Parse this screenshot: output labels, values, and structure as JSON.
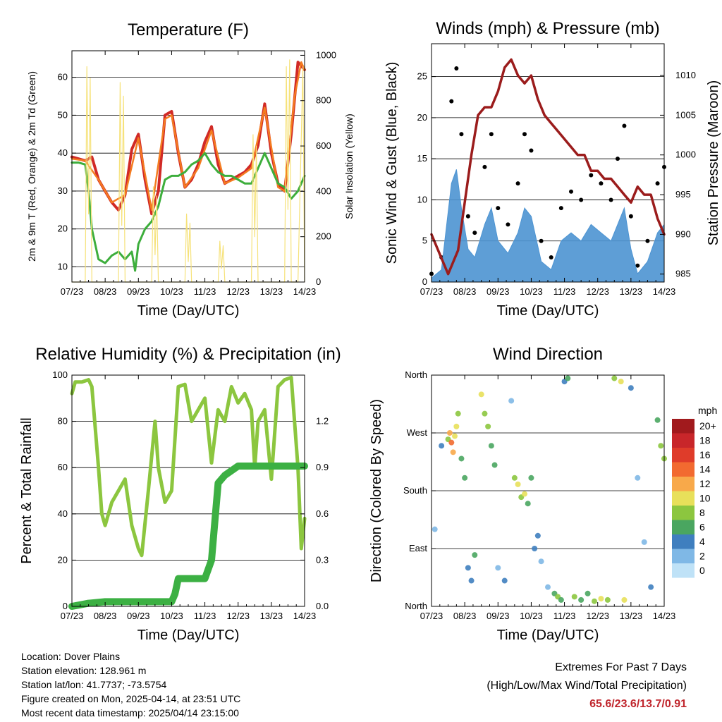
{
  "xticks": [
    "07/23",
    "08/23",
    "09/23",
    "10/23",
    "11/23",
    "12/23",
    "13/23",
    "14/23"
  ],
  "footer": {
    "location": "Location: Dover Plains",
    "elevation": "Station elevation: 128.961 m",
    "latlon": "Station lat/lon: 41.7737; -73.5754",
    "created": "Figure created on Mon, 2025-04-14, at 23:51 UTC",
    "recent": "Most recent data timestamp: 2025/04/14 23:15:00"
  },
  "extremes": {
    "title": "Extremes For Past 7 Days",
    "subtitle": "(High/Low/Max Wind/Total Precipitation)",
    "values": "65.6/23.6/13.7/0.91"
  },
  "colors": {
    "temp2m": "#d12a26",
    "temp9m": "#f47c20",
    "dew": "#3dae3c",
    "solar": "#f6e27a",
    "gust": "#000000",
    "wind": "#4d94d2",
    "pressure": "#9b1c1c",
    "rh": "#8cc63f",
    "precip": "#3cb043"
  },
  "chart_data": [
    {
      "type": "line",
      "title": "Temperature (F)",
      "xlabel": "Time (Day/UTC)",
      "ylabel": "2m & 9m T (Red, Orange) & 2m Td (Green)",
      "ylabel_right": "Solar Insolation (Yellow)",
      "x_range": [
        0,
        7
      ],
      "ylim": [
        6,
        67
      ],
      "yticks": [
        10,
        20,
        30,
        40,
        50,
        60
      ],
      "ylim_right": [
        0,
        1020
      ],
      "yticks_right": [
        0,
        200,
        400,
        600,
        800,
        1000
      ],
      "grid": true,
      "series": [
        {
          "name": "2m T",
          "x": [
            0,
            0.2,
            0.4,
            0.6,
            0.8,
            1.0,
            1.2,
            1.4,
            1.6,
            1.8,
            2.0,
            2.2,
            2.4,
            2.6,
            2.8,
            3.0,
            3.2,
            3.4,
            3.6,
            3.8,
            4.0,
            4.2,
            4.4,
            4.6,
            4.8,
            5.0,
            5.2,
            5.4,
            5.6,
            5.8,
            6.0,
            6.2,
            6.4,
            6.6,
            6.8,
            7.0
          ],
          "values": [
            39,
            38.5,
            38,
            39,
            33,
            30,
            27,
            25,
            29,
            41,
            45,
            33,
            24,
            30,
            50,
            51,
            40,
            31,
            33,
            37,
            43,
            47,
            37,
            32,
            33,
            34,
            35,
            37,
            42,
            53,
            40,
            32,
            30,
            45,
            64,
            62
          ]
        },
        {
          "name": "9m T",
          "x": [
            0,
            0.4,
            0.8,
            1.2,
            1.6,
            2.0,
            2.4,
            2.8,
            3.0,
            3.4,
            3.8,
            4.2,
            4.6,
            5.0,
            5.4,
            5.8,
            6.2,
            6.4,
            6.7,
            6.9,
            7.0
          ],
          "values": [
            38.5,
            38,
            33,
            27,
            29,
            44,
            25,
            49,
            50,
            31,
            36,
            46,
            32,
            33.5,
            36,
            52,
            31,
            30,
            55,
            64,
            62
          ]
        },
        {
          "name": "2m Td",
          "x": [
            0,
            0.2,
            0.4,
            0.5,
            0.6,
            0.8,
            1.0,
            1.2,
            1.4,
            1.6,
            1.8,
            1.9,
            2.0,
            2.2,
            2.4,
            2.6,
            2.8,
            3.0,
            3.2,
            3.4,
            3.6,
            3.8,
            4.0,
            4.2,
            4.4,
            4.6,
            4.8,
            5.0,
            5.2,
            5.4,
            5.6,
            5.8,
            6.0,
            6.2,
            6.4,
            6.6,
            6.8,
            7.0
          ],
          "values": [
            37.5,
            37.5,
            37,
            30,
            20,
            12,
            11,
            13,
            14,
            12,
            14,
            9,
            16,
            20,
            22,
            26,
            33,
            34,
            34,
            35,
            37,
            38,
            40,
            37,
            35,
            34,
            34,
            33,
            32,
            32,
            36,
            40,
            36,
            32,
            31,
            28,
            30,
            34
          ]
        },
        {
          "name": "Solar Insolation",
          "axis": "right",
          "x": [
            0,
            0.4,
            0.45,
            0.5,
            0.55,
            0.6,
            1.4,
            1.45,
            1.5,
            1.55,
            1.6,
            2.4,
            2.45,
            2.5,
            2.55,
            2.6,
            3.4,
            3.45,
            3.5,
            3.55,
            3.6,
            4.4,
            4.45,
            4.5,
            4.55,
            4.6,
            5.4,
            5.45,
            5.5,
            5.55,
            5.6,
            6.4,
            6.45,
            6.5,
            6.55,
            6.6,
            6.8,
            6.95,
            7.0
          ],
          "values": [
            0,
            0,
            950,
            300,
            900,
            0,
            0,
            880,
            250,
            820,
            0,
            0,
            420,
            120,
            380,
            0,
            0,
            300,
            90,
            260,
            0,
            0,
            180,
            60,
            160,
            0,
            0,
            650,
            200,
            600,
            0,
            0,
            950,
            320,
            980,
            0,
            0,
            950,
            0
          ]
        }
      ]
    },
    {
      "type": "line",
      "title": "Winds (mph) & Pressure (mb)",
      "xlabel": "Time (Day/UTC)",
      "ylabel": "Sonic Wind & Gust (Blue, Black)",
      "ylabel_right": "Station Pressure (Maroon)",
      "x_range": [
        0,
        7
      ],
      "ylim": [
        0,
        29
      ],
      "yticks": [
        0,
        5,
        10,
        15,
        20,
        25
      ],
      "ylim_right": [
        984,
        1014
      ],
      "yticks_right": [
        985,
        990,
        995,
        1000,
        1005,
        1010
      ],
      "grid": true,
      "series": [
        {
          "name": "Gust",
          "x": [
            0,
            0.3,
            0.6,
            0.75,
            0.9,
            1.1,
            1.3,
            1.6,
            1.8,
            2.0,
            2.3,
            2.6,
            2.8,
            3.0,
            3.3,
            3.6,
            3.9,
            4.2,
            4.5,
            4.8,
            5.1,
            5.4,
            5.6,
            5.8,
            6.0,
            6.2,
            6.5,
            6.8,
            7.0
          ],
          "values": [
            1,
            3,
            22,
            26,
            18,
            8,
            6,
            14,
            18,
            9,
            7,
            12,
            18,
            16,
            5,
            3,
            9,
            11,
            10,
            13,
            12,
            10,
            15,
            19,
            8,
            2,
            5,
            12,
            14
          ]
        },
        {
          "name": "Wind",
          "x": [
            0,
            0.3,
            0.6,
            0.75,
            0.9,
            1.1,
            1.3,
            1.6,
            1.8,
            2.0,
            2.3,
            2.6,
            2.8,
            3.0,
            3.3,
            3.6,
            3.9,
            4.2,
            4.5,
            4.8,
            5.1,
            5.4,
            5.6,
            5.8,
            6.0,
            6.2,
            6.5,
            6.8,
            7.0
          ],
          "values": [
            0.5,
            1.5,
            12,
            13.7,
            9,
            4,
            3,
            7,
            9,
            5,
            3.5,
            6,
            9,
            8,
            2.5,
            1.5,
            5,
            6,
            5,
            7,
            6,
            5,
            7,
            9,
            4,
            1,
            2.5,
            6,
            7
          ]
        },
        {
          "name": "Pressure",
          "axis": "right",
          "x": [
            0,
            0.3,
            0.5,
            0.8,
            1.0,
            1.2,
            1.4,
            1.6,
            1.8,
            2.0,
            2.2,
            2.4,
            2.6,
            2.8,
            3.0,
            3.2,
            3.4,
            3.6,
            3.8,
            4.0,
            4.2,
            4.4,
            4.6,
            4.8,
            5.0,
            5.2,
            5.4,
            5.6,
            5.8,
            6.0,
            6.2,
            6.4,
            6.6,
            6.8,
            7.0
          ],
          "values": [
            990,
            987,
            985,
            988,
            994,
            1000,
            1005,
            1006,
            1006,
            1008,
            1011,
            1012,
            1010,
            1009,
            1010,
            1007,
            1005,
            1004,
            1003,
            1002,
            1001,
            1000,
            1000,
            998,
            998,
            997,
            997,
            996,
            995,
            994,
            996,
            995,
            995,
            992,
            990
          ]
        }
      ]
    },
    {
      "type": "line",
      "title": "Relative Humidity (%) & Precipitation (in)",
      "xlabel": "Time (Day/UTC)",
      "ylabel": "Percent & Total Rainfall",
      "x_range": [
        0,
        7
      ],
      "ylim": [
        0,
        100
      ],
      "yticks": [
        0,
        20,
        40,
        60,
        80,
        100
      ],
      "ylim_right": [
        0,
        1.5
      ],
      "yticks_right": [
        0.0,
        0.3,
        0.6,
        0.9,
        1.2
      ],
      "yticks_right_labels": [
        "0.0",
        "0.3",
        "0.6",
        "0.9",
        "1.2"
      ],
      "grid": true,
      "series": [
        {
          "name": "Relative Humidity",
          "x": [
            0,
            0.1,
            0.3,
            0.5,
            0.6,
            0.8,
            0.9,
            1.0,
            1.2,
            1.4,
            1.6,
            1.8,
            2.0,
            2.1,
            2.3,
            2.5,
            2.6,
            2.8,
            3.0,
            3.2,
            3.4,
            3.6,
            3.8,
            4.0,
            4.2,
            4.4,
            4.6,
            4.8,
            5.0,
            5.2,
            5.4,
            5.5,
            5.6,
            5.8,
            6.0,
            6.2,
            6.4,
            6.6,
            6.8,
            6.9,
            7.0
          ],
          "values": [
            92,
            97,
            97,
            98,
            95,
            60,
            40,
            35,
            45,
            50,
            55,
            35,
            25,
            22,
            50,
            80,
            60,
            45,
            50,
            95,
            96,
            80,
            85,
            90,
            62,
            85,
            80,
            95,
            88,
            92,
            85,
            60,
            80,
            85,
            55,
            95,
            98,
            99,
            60,
            25,
            38
          ]
        },
        {
          "name": "Total Precipitation",
          "axis": "right",
          "x": [
            0,
            0.5,
            1.0,
            2.0,
            3.0,
            3.1,
            3.2,
            3.4,
            4.0,
            4.2,
            4.3,
            4.4,
            4.6,
            5.0,
            6.0,
            7.0
          ],
          "values": [
            0,
            0.02,
            0.03,
            0.03,
            0.03,
            0.08,
            0.18,
            0.18,
            0.18,
            0.3,
            0.55,
            0.8,
            0.85,
            0.91,
            0.91,
            0.91
          ]
        }
      ]
    },
    {
      "type": "scatter",
      "title": "Wind Direction",
      "xlabel": "Time (Day/UTC)",
      "ylabel": "Direction (Colored By Speed)",
      "x_range": [
        0,
        7
      ],
      "ylim": [
        0,
        360
      ],
      "yticks": [
        0,
        90,
        180,
        270,
        360
      ],
      "ytick_labels": [
        "North",
        "East",
        "South",
        "West",
        "North"
      ],
      "colorbar": {
        "label": "mph",
        "levels": [
          "20+",
          "18",
          "16",
          "14",
          "12",
          "10",
          "8",
          "6",
          "4",
          "2",
          "0"
        ],
        "colors": [
          "#a11a1d",
          "#c8262a",
          "#df3c2a",
          "#f26a30",
          "#f8a94a",
          "#e8e05a",
          "#8cc63f",
          "#4aa660",
          "#3f7fbf",
          "#7fb8e6",
          "#bfe2f7"
        ]
      },
      "series": [
        {
          "name": "direction",
          "x": [
            0.1,
            0.3,
            0.5,
            0.55,
            0.6,
            0.65,
            0.7,
            0.75,
            0.8,
            0.9,
            1.0,
            1.1,
            1.2,
            1.3,
            1.5,
            1.6,
            1.7,
            1.8,
            1.9,
            2.0,
            2.2,
            2.4,
            2.5,
            2.6,
            2.7,
            2.8,
            2.9,
            3.0,
            3.1,
            3.2,
            3.3,
            3.5,
            3.7,
            3.8,
            3.9,
            4.0,
            4.1,
            4.3,
            4.5,
            4.7,
            4.9,
            5.1,
            5.3,
            5.5,
            5.7,
            5.8,
            6.0,
            6.2,
            6.4,
            6.6,
            6.8,
            6.9,
            7.0
          ],
          "values": [
            120,
            250,
            260,
            270,
            255,
            240,
            265,
            280,
            300,
            230,
            200,
            60,
            40,
            80,
            330,
            300,
            280,
            250,
            220,
            60,
            40,
            320,
            200,
            190,
            170,
            175,
            160,
            200,
            90,
            110,
            70,
            30,
            20,
            15,
            10,
            350,
            355,
            15,
            10,
            20,
            8,
            12,
            10,
            355,
            350,
            10,
            340,
            200,
            100,
            30,
            290,
            250,
            230
          ],
          "speeds": [
            2,
            4,
            8,
            12,
            13,
            11,
            10,
            9,
            7,
            6,
            5,
            3,
            4,
            6,
            9,
            8,
            7,
            6,
            5,
            2,
            3,
            1,
            7,
            9,
            8,
            10,
            6,
            5,
            4,
            3,
            2,
            1,
            6,
            7,
            5,
            4,
            6,
            8,
            6,
            5,
            7,
            9,
            8,
            7,
            9,
            10,
            3,
            2,
            1,
            3,
            6,
            8,
            7
          ]
        }
      ]
    }
  ]
}
